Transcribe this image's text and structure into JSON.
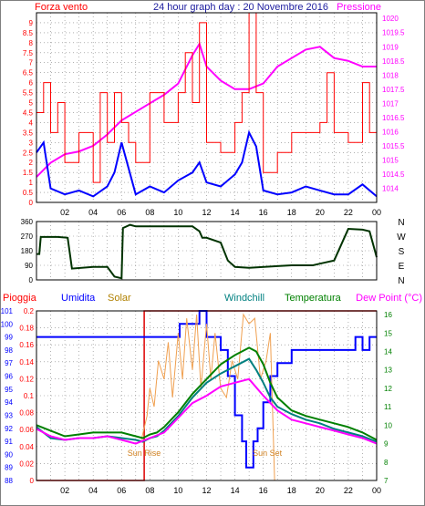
{
  "colors": {
    "background": "#ffffff",
    "frame": "#000000",
    "grid": "#808080",
    "wind": "#ff0000",
    "gust": "#ff0000",
    "wind_avg": "#0000ff",
    "pressure": "#ff00ff",
    "direction": "#003300",
    "rain": "#dd0000",
    "humidity": "#0000ff",
    "solar": "#f0a050",
    "windchill": "#008080",
    "temperature": "#008000",
    "dew_point": "#ff00ff",
    "title": "#2020a0",
    "left_axis_wind": "#ff0000",
    "right_axis_pressure": "#ff00ff",
    "rain_axis": "#ff0000",
    "humidity_axis": "#0000ff",
    "temp_axis": "#008000"
  },
  "chart_data": [
    {
      "type": "line",
      "title": "24 hour graph day : 20 Novembre 2016",
      "ylabel": "Forza vento",
      "y2label": "Pressione",
      "x_ticks": [
        "02",
        "04",
        "06",
        "08",
        "10",
        "12",
        "14",
        "16",
        "18",
        "20",
        "22",
        "00"
      ],
      "ylim": [
        0,
        9.5
      ],
      "y_ticks": [
        "0",
        "0.5",
        "1",
        "1.5",
        "2",
        "2.5",
        "3",
        "3.5",
        "4",
        "4.5",
        "5",
        "5.5",
        "6",
        "6.5",
        "7",
        "7.5",
        "8",
        "8.5",
        "9"
      ],
      "y2lim": [
        1013.5,
        1020.2
      ],
      "y2_ticks": [
        "1014",
        "1014.5",
        "1015",
        "1015.5",
        "1016",
        "1016.5",
        "1017",
        "1017.5",
        "1018",
        "1018.5",
        "1019",
        "1019.5",
        "1020"
      ],
      "series": [
        {
          "key": "pressure",
          "axis": "right",
          "x": [
            0,
            1,
            2,
            3,
            4,
            5,
            6,
            7,
            8,
            9,
            10,
            11,
            11.5,
            12,
            13,
            14,
            15,
            16,
            17,
            18,
            19,
            20,
            21,
            22,
            23,
            24
          ],
          "values": [
            1014.4,
            1014.9,
            1015.2,
            1015.3,
            1015.5,
            1015.9,
            1016.4,
            1016.7,
            1017.0,
            1017.3,
            1017.7,
            1018.7,
            1019.1,
            1018.3,
            1017.8,
            1017.5,
            1017.5,
            1017.7,
            1018.3,
            1018.6,
            1018.9,
            1019.0,
            1018.6,
            1018.5,
            1018.3,
            1018.3
          ]
        },
        {
          "key": "wind_avg",
          "axis": "left",
          "x": [
            0,
            0.5,
            1,
            2,
            3,
            4,
            5,
            5.5,
            6,
            7,
            8,
            9,
            10,
            11,
            11.5,
            12,
            13,
            14,
            14.5,
            15,
            15.5,
            16,
            17,
            18,
            19,
            20,
            21,
            22,
            23,
            24
          ],
          "values": [
            2.5,
            3.0,
            0.7,
            0.4,
            0.6,
            0.3,
            0.8,
            1.5,
            3.0,
            0.4,
            0.8,
            0.5,
            1.1,
            1.5,
            2.0,
            1.0,
            0.8,
            1.4,
            2.0,
            3.5,
            2.8,
            0.6,
            0.4,
            0.5,
            0.8,
            0.6,
            0.4,
            0.4,
            0.9,
            0.3
          ]
        },
        {
          "key": "gust",
          "axis": "left",
          "x": [
            0,
            0.5,
            1,
            1.5,
            2,
            3,
            4,
            4.5,
            5,
            5.5,
            6,
            6.5,
            7,
            8,
            9,
            10,
            10.5,
            11,
            11.5,
            12,
            13,
            14,
            14.5,
            15,
            15.5,
            16,
            17,
            18,
            19,
            20,
            20.5,
            21,
            22,
            23,
            23.5,
            24
          ],
          "values": [
            4.5,
            6.0,
            3.5,
            5.0,
            2.0,
            3.5,
            1.0,
            5.5,
            3.0,
            5.5,
            4.0,
            3.0,
            2.0,
            5.5,
            4.0,
            5.5,
            7.5,
            5.0,
            9.0,
            3.0,
            2.5,
            4.0,
            5.5,
            9.5,
            5.5,
            1.5,
            2.5,
            3.5,
            3.5,
            4.0,
            6.5,
            3.5,
            3.0,
            6.0,
            3.5,
            2.5
          ]
        }
      ]
    },
    {
      "type": "line",
      "ylabel": "",
      "y_ticks": [
        "0",
        "90",
        "180",
        "270",
        "360"
      ],
      "ylim": [
        0,
        360
      ],
      "compass": [
        "N",
        "W",
        "S",
        "E",
        "N"
      ],
      "series": [
        {
          "key": "direction",
          "x": [
            0,
            0.2,
            0.3,
            1.0,
            1.5,
            2.2,
            2.5,
            4.0,
            5.0,
            5.5,
            6.0,
            6.1,
            6.6,
            7.0,
            8.0,
            9.0,
            10.0,
            11.0,
            11.5,
            11.7,
            12.0,
            13.0,
            13.5,
            14.0,
            15.0,
            17.0,
            18.0,
            19.5,
            20.0,
            21.0,
            22.0,
            23.0,
            23.5,
            24.0
          ],
          "values": [
            160,
            160,
            265,
            265,
            265,
            260,
            70,
            80,
            80,
            20,
            10,
            320,
            340,
            330,
            330,
            330,
            330,
            330,
            300,
            260,
            260,
            230,
            120,
            80,
            75,
            85,
            90,
            90,
            100,
            120,
            315,
            310,
            300,
            140
          ]
        }
      ]
    },
    {
      "type": "line",
      "labels": [
        "Pioggia",
        "Umidita",
        "Solar",
        "Windchill",
        "Temperatura",
        "Dew Point (°C)"
      ],
      "annotations": [
        "Sun Rise",
        "Sun Set"
      ],
      "rain_lim": [
        0,
        0.2
      ],
      "rain_ticks": [
        "0",
        "0.02",
        "0.04",
        "0.06",
        "0.08",
        "0.1",
        "0.12",
        "0.14",
        "0.16",
        "0.18",
        "0.2"
      ],
      "humidity_lim": [
        88,
        101
      ],
      "humidity_ticks": [
        "88",
        "89",
        "90",
        "91",
        "92",
        "93",
        "94",
        "95",
        "96",
        "97",
        "98",
        "99",
        "100",
        "101"
      ],
      "temp_lim": [
        7,
        16.2
      ],
      "temp_ticks": [
        "7",
        "8",
        "9",
        "10",
        "11",
        "12",
        "13",
        "14",
        "15",
        "16"
      ],
      "sun_rise_hour": 7.4,
      "sun_set_hour": 16.8,
      "series": [
        {
          "key": "rain",
          "axis": "rain",
          "x": [
            0,
            7.6,
            7.6,
            16.6,
            16.7,
            24
          ],
          "values": [
            0,
            0,
            0.2,
            0.2,
            0.2,
            0.2
          ]
        },
        {
          "key": "humidity",
          "axis": "humidity",
          "x": [
            0,
            7.5,
            7.6,
            9.0,
            10.0,
            10.1,
            11.0,
            11.5,
            12.0,
            13.0,
            13.5,
            14.0,
            14.5,
            14.8,
            15.0,
            15.3,
            15.6,
            16.0,
            16.5,
            17.0,
            17.5,
            18.0,
            19.0,
            20.0,
            22.0,
            22.5,
            23.0,
            23.5,
            24.0
          ],
          "values": [
            99,
            99,
            99,
            99,
            99,
            100,
            100,
            101,
            99,
            98,
            96,
            93,
            91,
            89,
            89,
            91,
            92,
            94,
            96,
            97,
            97,
            98,
            98,
            98,
            98,
            99,
            98,
            99,
            99
          ]
        },
        {
          "key": "solar",
          "axis": "temp",
          "x": [
            7.4,
            7.8,
            8.0,
            8.3,
            8.6,
            9.0,
            9.3,
            9.6,
            10.0,
            10.3,
            10.6,
            11.0,
            11.3,
            11.6,
            12.0,
            12.3,
            12.6,
            13.0,
            13.4,
            13.8,
            14.2,
            14.6,
            15.0,
            15.4,
            15.8,
            16.2,
            16.5,
            16.8
          ],
          "values": [
            9.2,
            10.5,
            12.0,
            11.0,
            13.5,
            12.5,
            14.5,
            11.5,
            15.0,
            12.5,
            15.8,
            13.0,
            16.0,
            12.0,
            15.5,
            12.5,
            15.0,
            12.0,
            11.5,
            13.5,
            12.5,
            16.0,
            15.5,
            15.8,
            12.5,
            13.5,
            15.0,
            7.0
          ]
        },
        {
          "key": "windchill",
          "axis": "temp",
          "x": [
            0,
            1.0,
            2.0,
            3.0,
            4.0,
            5.0,
            6.0,
            7.0,
            7.5,
            8.0,
            8.5,
            9.0,
            10.0,
            11.0,
            12.0,
            13.0,
            14.0,
            15.0,
            15.5,
            16.0,
            16.5,
            17.0,
            18.0,
            19.0,
            20.0,
            21.0,
            22.0,
            23.0,
            24.0
          ],
          "values": [
            9.9,
            9.3,
            9.2,
            9.3,
            9.3,
            9.4,
            9.3,
            9.2,
            9.1,
            9.3,
            9.4,
            9.7,
            10.5,
            11.5,
            12.3,
            12.8,
            13.2,
            13.6,
            13.0,
            12.3,
            11.5,
            11.0,
            10.6,
            10.3,
            10.1,
            9.8,
            9.6,
            9.4,
            9.1
          ]
        },
        {
          "key": "temperature",
          "axis": "temp",
          "x": [
            0,
            1.0,
            2.0,
            3.0,
            4.0,
            5.0,
            6.0,
            7.0,
            7.5,
            8.0,
            8.5,
            9.0,
            10.0,
            11.0,
            12.0,
            13.0,
            14.0,
            15.0,
            15.5,
            16.0,
            16.5,
            17.0,
            18.0,
            19.0,
            20.0,
            21.0,
            22.0,
            23.0,
            24.0
          ],
          "values": [
            10.0,
            9.7,
            9.4,
            9.5,
            9.6,
            9.6,
            9.6,
            9.4,
            9.3,
            9.5,
            9.6,
            9.9,
            10.7,
            11.7,
            12.5,
            13.3,
            13.8,
            14.2,
            14.0,
            13.3,
            12.3,
            11.5,
            10.8,
            10.5,
            10.3,
            10.1,
            9.9,
            9.6,
            9.2
          ]
        },
        {
          "key": "dew_point",
          "axis": "temp",
          "x": [
            0,
            1.0,
            2.0,
            3.0,
            4.0,
            5.0,
            6.0,
            7.0,
            8.0,
            9.0,
            10.0,
            11.0,
            12.0,
            13.0,
            14.0,
            15.0,
            16.0,
            17.0,
            18.0,
            19.0,
            20.0,
            21.0,
            22.0,
            23.0,
            24.0
          ],
          "values": [
            9.8,
            9.4,
            9.2,
            9.3,
            9.3,
            9.4,
            9.2,
            9.0,
            9.3,
            9.6,
            10.4,
            11.2,
            11.6,
            12.1,
            12.3,
            12.5,
            11.6,
            10.8,
            10.3,
            10.1,
            9.9,
            9.7,
            9.5,
            9.3,
            9.0
          ]
        }
      ]
    }
  ]
}
